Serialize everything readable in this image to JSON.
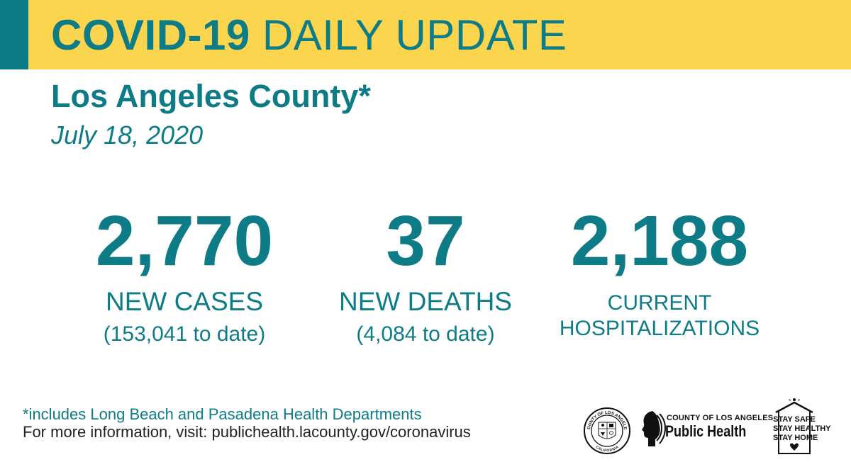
{
  "banner": {
    "title": "COVID-19 DAILY UPDATE",
    "title_part1": "COVID-19",
    "title_part2": "DAILY UPDATE"
  },
  "header": {
    "region": "Los Angeles County*",
    "date": "July 18, 2020"
  },
  "stats": [
    {
      "value": "2,770",
      "label": "NEW CASES",
      "sub": "(153,041 to date)"
    },
    {
      "value": "37",
      "label": "NEW DEATHS",
      "sub": "(4,084 to date)"
    },
    {
      "value": "2,188",
      "label_line1": "CURRENT",
      "label_line2": "HOSPITALIZATIONS"
    }
  ],
  "footer": {
    "footnote": "*includes Long Beach and Pasadena Health Departments",
    "more_info": "For more information, visit: publichealth.lacounty.gov/coronavirus"
  },
  "logos": {
    "seal": {
      "icon": "county-seal-icon",
      "text_top": "COUNTY OF LOS ANGELES",
      "text_bottom": "CALIFORNIA"
    },
    "public_health": {
      "icon": "public-health-profile-icon",
      "line1": "COUNTY OF LOS ANGELES",
      "line2": "Public Health"
    },
    "stay_safe": {
      "icon": "house-heart-icon",
      "line1": "STAY SAFE",
      "line2": "STAY HEALTHY",
      "line3": "STAY HOME"
    }
  },
  "colors": {
    "teal": "#0e7c86",
    "banner_yellow": "#fcd54f",
    "text_dark": "#222222"
  }
}
